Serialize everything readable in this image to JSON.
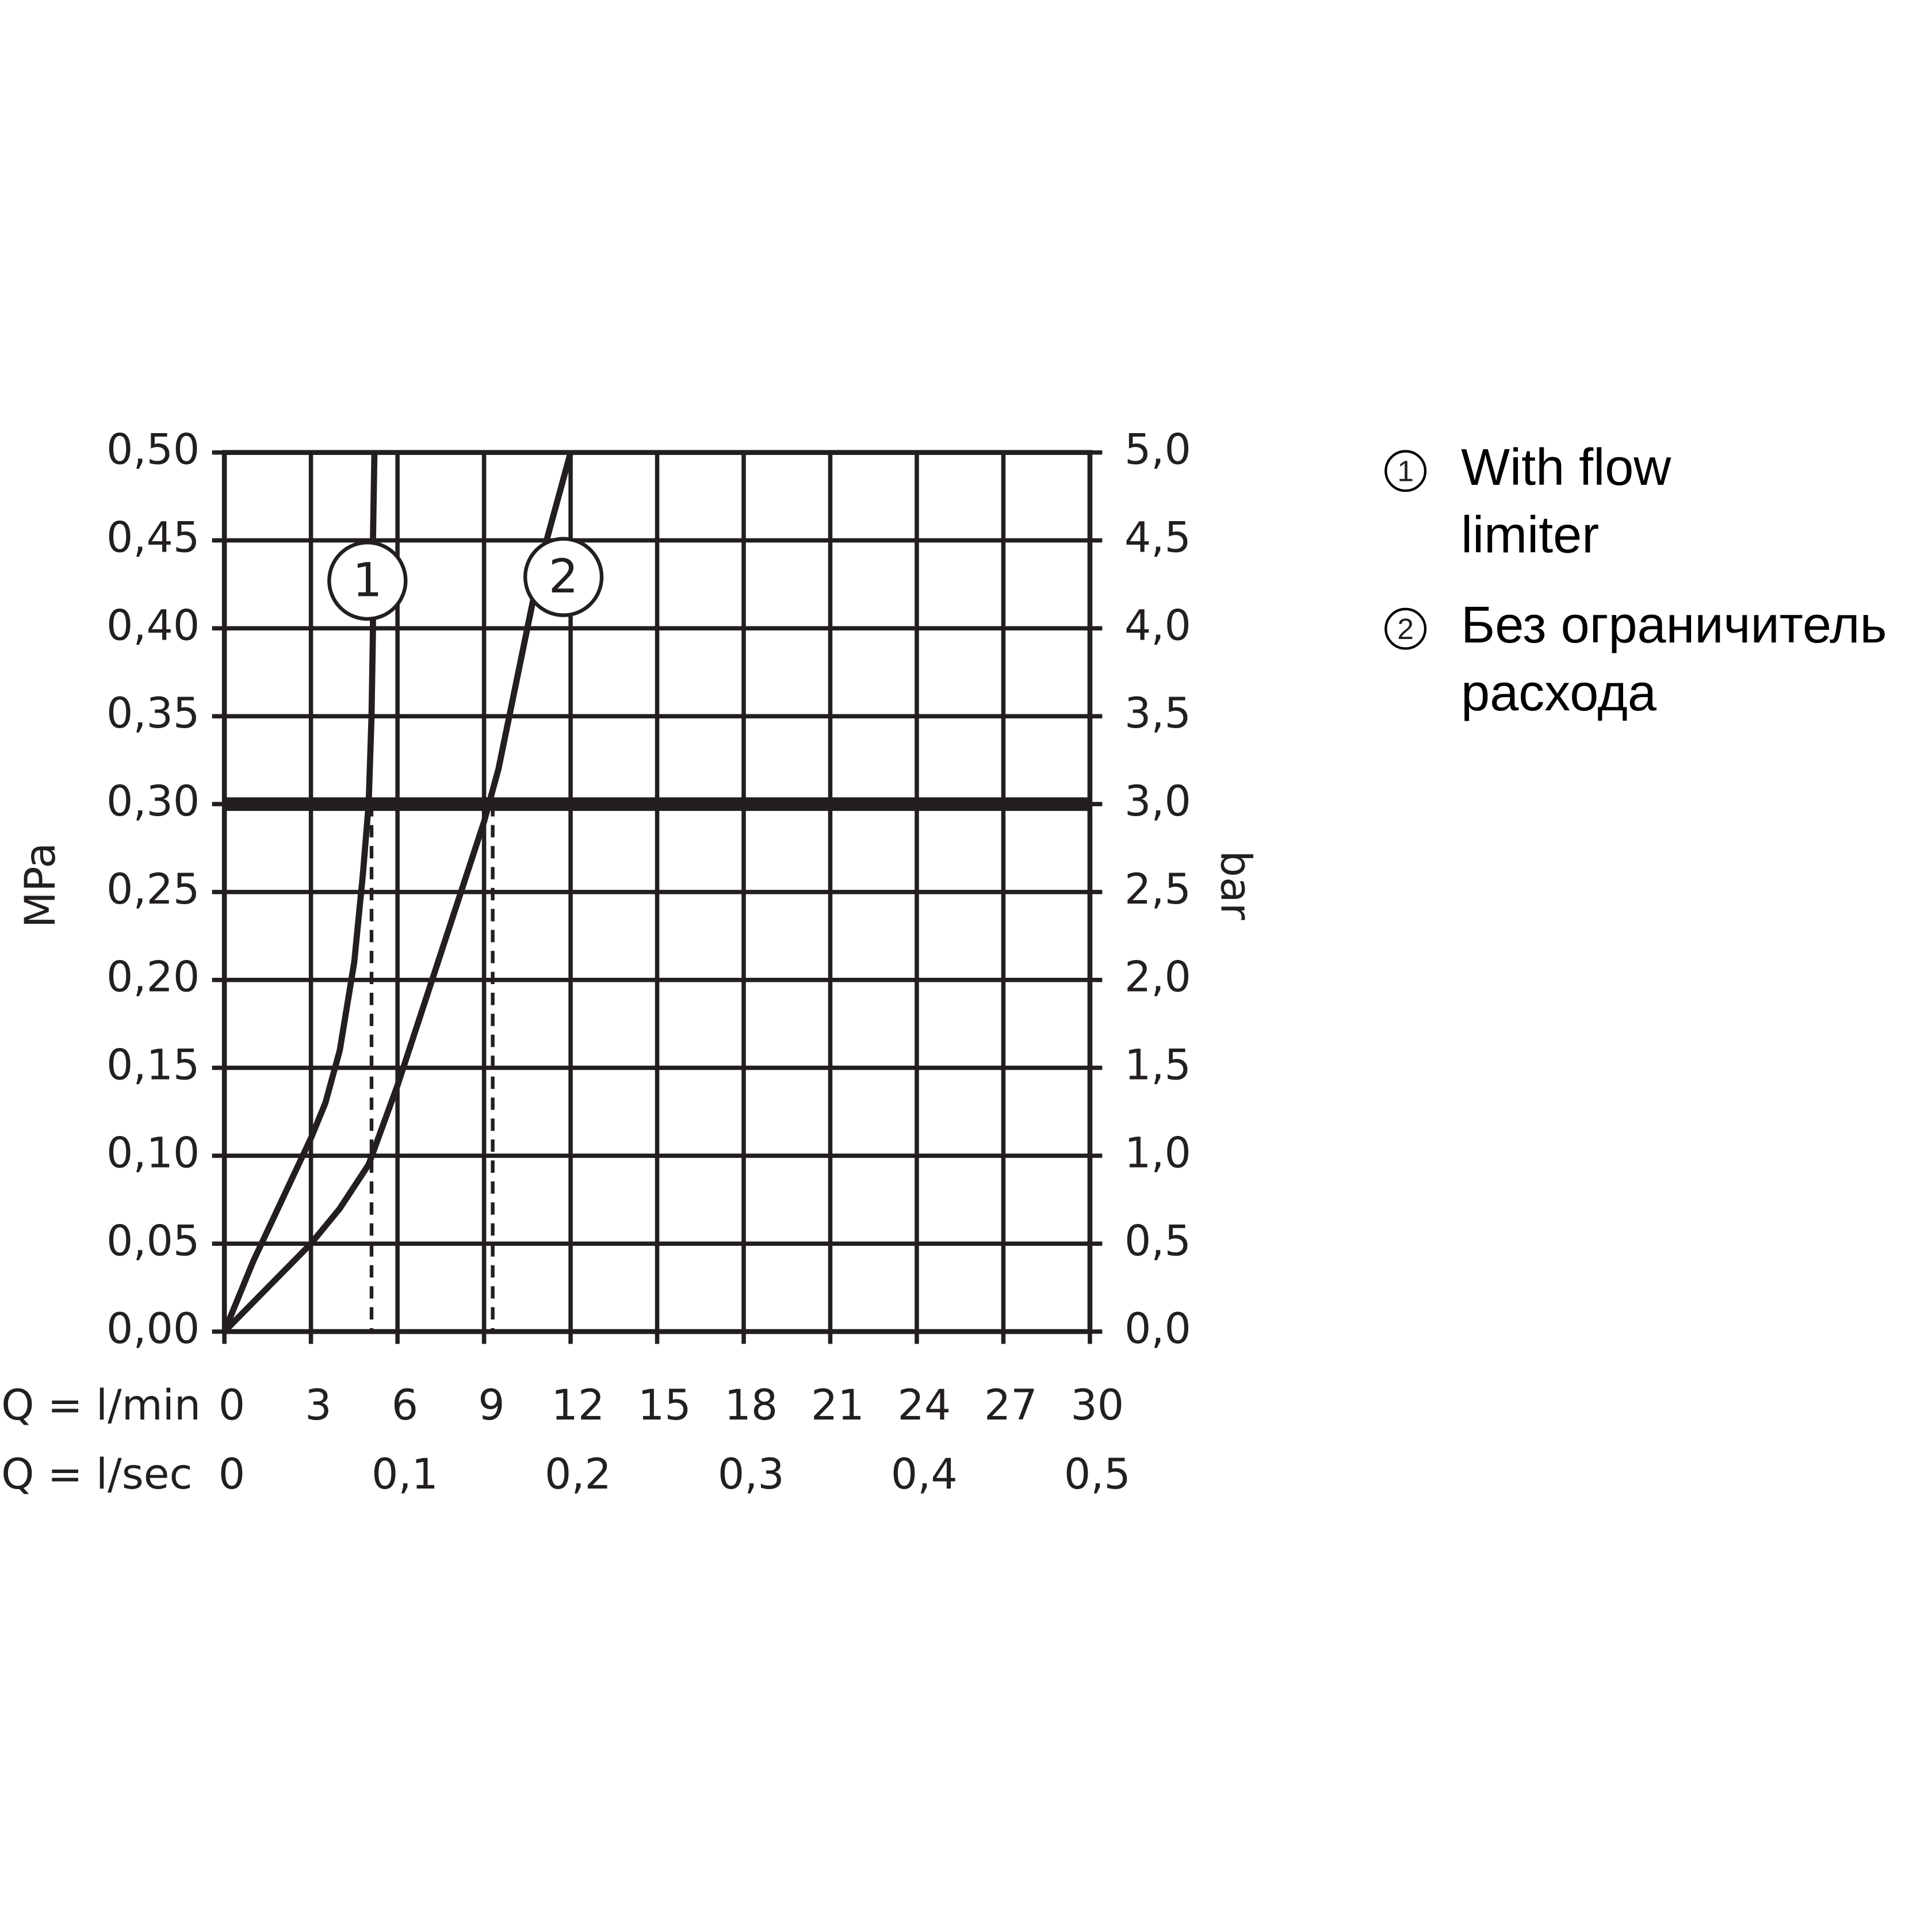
{
  "chart_data": {
    "type": "line",
    "xlabel": "Q = l/min",
    "x2label": "Q = l/sec",
    "ylabel": "MPa",
    "y2label": "bar",
    "xlim": [
      0,
      30
    ],
    "xticks": [
      0,
      3,
      6,
      9,
      12,
      15,
      18,
      21,
      24,
      27,
      30
    ],
    "x2lim": [
      0,
      0.5
    ],
    "x2ticks": [
      0,
      {
        "value": 0.1,
        "label": "0,1"
      },
      {
        "value": 0.2,
        "label": "0,2"
      },
      {
        "value": 0.3,
        "label": "0,3"
      },
      {
        "value": 0.4,
        "label": "0,4"
      },
      {
        "value": 0.5,
        "label": "0,5"
      }
    ],
    "ylim": [
      0,
      0.5
    ],
    "yticks": [
      {
        "value": 0,
        "label": "0,00"
      },
      {
        "value": 0.05,
        "label": "0,05"
      },
      {
        "value": 0.1,
        "label": "0,10"
      },
      {
        "value": 0.15,
        "label": "0,15"
      },
      {
        "value": 0.2,
        "label": "0,20"
      },
      {
        "value": 0.25,
        "label": "0,25"
      },
      {
        "value": 0.3,
        "label": "0,30"
      },
      {
        "value": 0.35,
        "label": "0,35"
      },
      {
        "value": 0.4,
        "label": "0,40"
      },
      {
        "value": 0.45,
        "label": "0,45"
      },
      {
        "value": 0.5,
        "label": "0,50"
      }
    ],
    "y2lim": [
      0,
      5
    ],
    "y2ticks": [
      {
        "value": 0,
        "label": "0,0"
      },
      {
        "value": 0.5,
        "label": "0,5"
      },
      {
        "value": 1,
        "label": "1,0"
      },
      {
        "value": 1.5,
        "label": "1,5"
      },
      {
        "value": 2,
        "label": "2,0"
      },
      {
        "value": 2.5,
        "label": "2,5"
      },
      {
        "value": 3,
        "label": "3,0"
      },
      {
        "value": 3.5,
        "label": "3,5"
      },
      {
        "value": 4,
        "label": "4,0"
      },
      {
        "value": 4.5,
        "label": "4,5"
      },
      {
        "value": 5,
        "label": "5,0"
      }
    ],
    "grid": true,
    "reference_y": 0.3,
    "reference_x": [
      5.1,
      9.3
    ],
    "series": [
      {
        "name": "With flow limiter",
        "marker_label": "1",
        "color": "#231f20",
        "x": [
          0,
          1,
          2,
          3,
          3.5,
          4,
          4.5,
          4.8,
          5,
          5.1,
          5.15,
          5.15,
          5.2
        ],
        "values": [
          0,
          0.04,
          0.075,
          0.11,
          0.13,
          0.16,
          0.21,
          0.26,
          0.3,
          0.35,
          0.4,
          0.45,
          0.5
        ]
      },
      {
        "name": "Без ограничитель расхода",
        "marker_label": "2",
        "color": "#231f20",
        "x": [
          0,
          1.5,
          3,
          4,
          5,
          6,
          7,
          8,
          9,
          9.5,
          10,
          10.5,
          11,
          11.5,
          12
        ],
        "values": [
          0,
          0.025,
          0.05,
          0.07,
          0.095,
          0.14,
          0.19,
          0.24,
          0.29,
          0.32,
          0.36,
          0.4,
          0.44,
          0.47,
          0.5
        ]
      }
    ]
  }
}
